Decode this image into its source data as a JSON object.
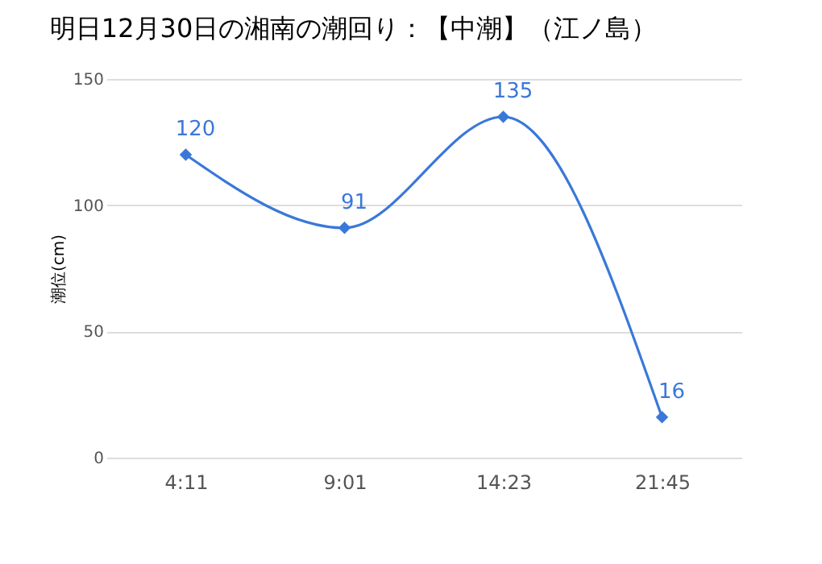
{
  "chart_data": {
    "type": "line",
    "title": "明日12月30日の湘南の潮回り：【中潮】（江ノ島）",
    "ylabel": "潮位(cm)",
    "categories": [
      "4:11",
      "9:01",
      "14:23",
      "21:45"
    ],
    "series": [
      {
        "color": "#3a78d8",
        "values": [
          120,
          91,
          135,
          16
        ]
      }
    ],
    "ylim": [
      0,
      150
    ],
    "yticks": [
      0,
      50,
      100,
      150
    ],
    "grid": "y",
    "marker": "diamond",
    "line_style": "solid",
    "data_labels": true
  }
}
